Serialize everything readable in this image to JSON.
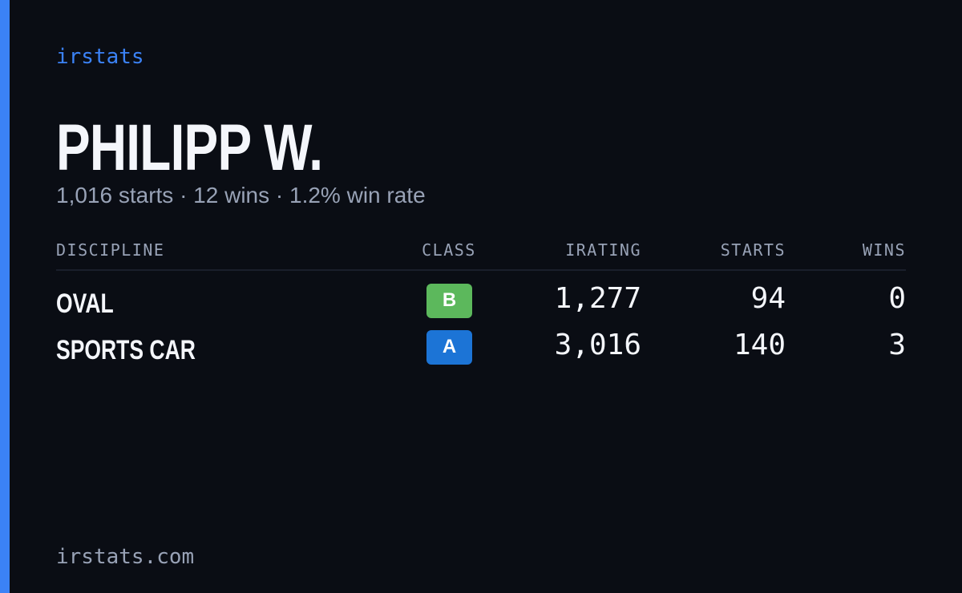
{
  "brand": "irstats",
  "profile": {
    "name": "PHILIPP W.",
    "summary": "1,016 starts · 12 wins · 1.2% win rate"
  },
  "table": {
    "headers": [
      "DISCIPLINE",
      "CLASS",
      "IRATING",
      "STARTS",
      "WINS"
    ],
    "rows": [
      {
        "discipline": "OVAL",
        "class": "B",
        "class_color": "#5cb85c",
        "irating": "1,277",
        "starts": "94",
        "wins": "0"
      },
      {
        "discipline": "SPORTS CAR",
        "class": "A",
        "class_color": "#1c74d6",
        "irating": "3,016",
        "starts": "140",
        "wins": "3"
      }
    ]
  },
  "footer": "irstats.com"
}
